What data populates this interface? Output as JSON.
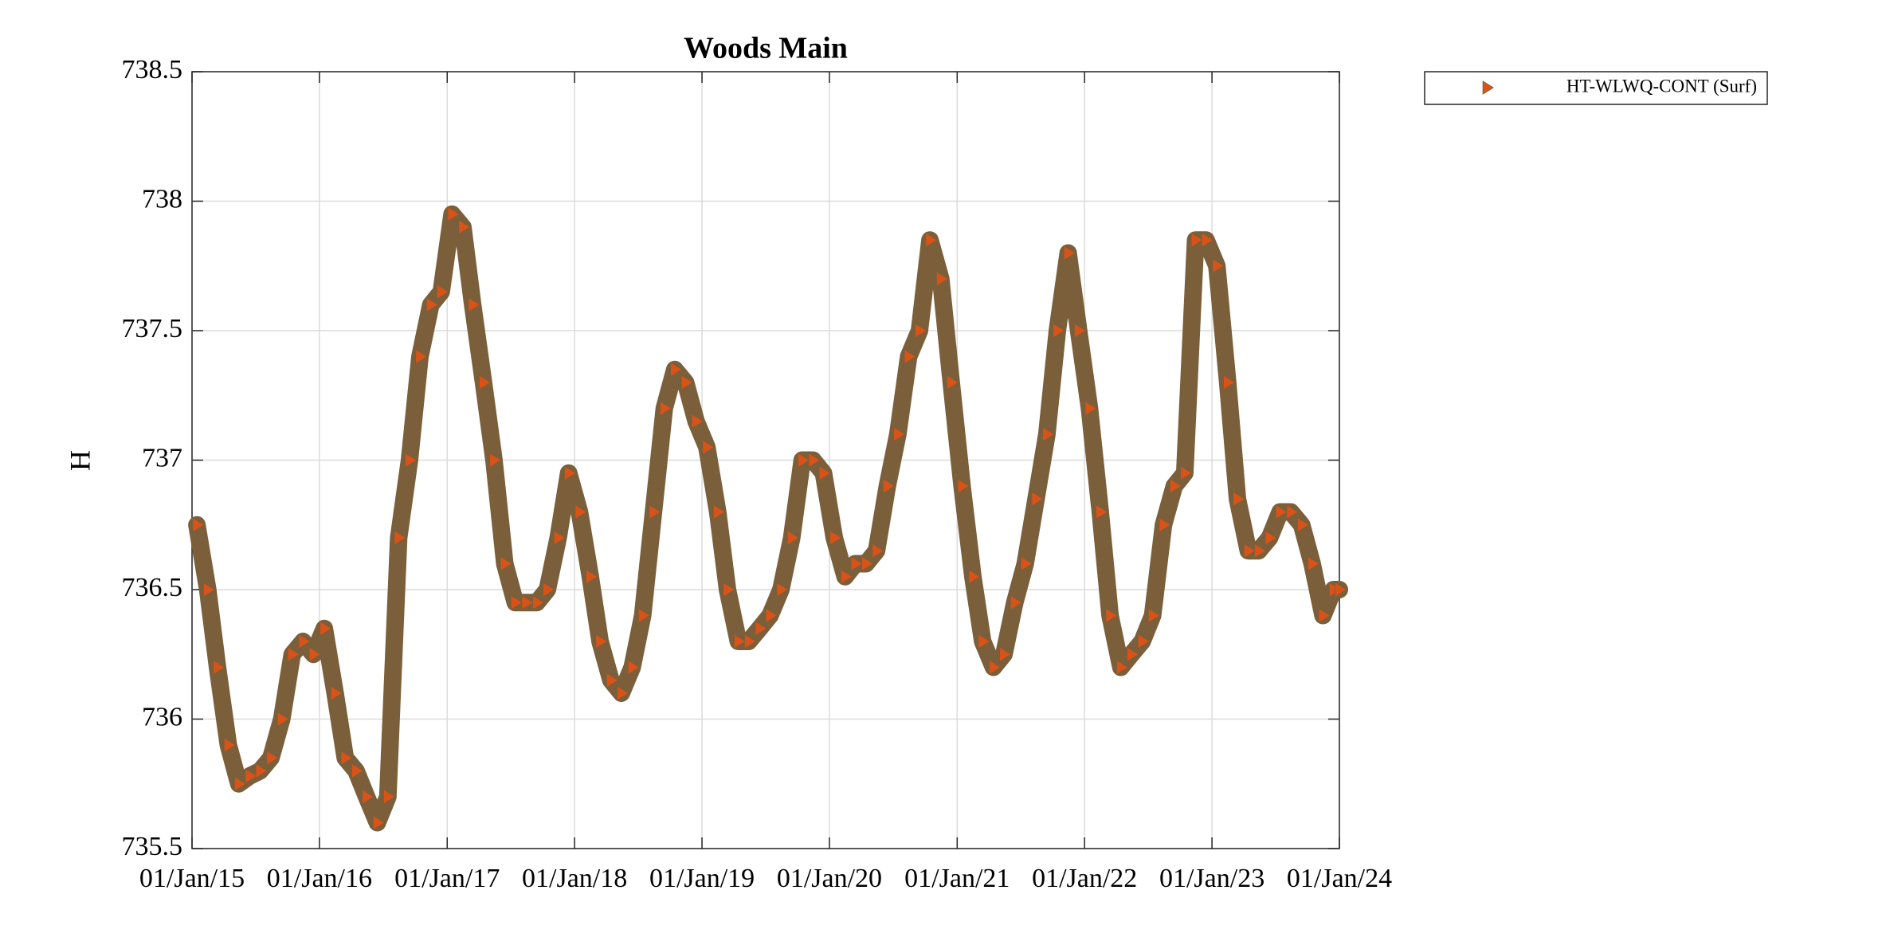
{
  "chart_data": {
    "type": "scatter",
    "title": "Woods Main",
    "y_label": "H",
    "x": [
      "2015-01-15",
      "2015-02-15",
      "2015-03-15",
      "2015-04-15",
      "2015-05-15",
      "2015-06-15",
      "2015-07-15",
      "2015-08-15",
      "2015-09-15",
      "2015-10-15",
      "2015-11-15",
      "2015-12-15",
      "2016-01-15",
      "2016-02-15",
      "2016-03-15",
      "2016-04-15",
      "2016-05-15",
      "2016-06-15",
      "2016-07-15",
      "2016-08-15",
      "2016-09-15",
      "2016-10-15",
      "2016-11-15",
      "2016-12-15",
      "2017-01-15",
      "2017-02-15",
      "2017-03-15",
      "2017-04-15",
      "2017-05-15",
      "2017-06-15",
      "2017-07-15",
      "2017-08-15",
      "2017-09-15",
      "2017-10-15",
      "2017-11-15",
      "2017-12-15",
      "2018-01-15",
      "2018-02-15",
      "2018-03-15",
      "2018-04-15",
      "2018-05-15",
      "2018-06-15",
      "2018-07-15",
      "2018-08-15",
      "2018-09-15",
      "2018-10-15",
      "2018-11-15",
      "2018-12-15",
      "2019-01-15",
      "2019-02-15",
      "2019-03-15",
      "2019-04-15",
      "2019-05-15",
      "2019-06-15",
      "2019-07-15",
      "2019-08-15",
      "2019-09-15",
      "2019-10-15",
      "2019-11-15",
      "2019-12-15",
      "2020-01-15",
      "2020-02-15",
      "2020-03-15",
      "2020-04-15",
      "2020-05-15",
      "2020-06-15",
      "2020-07-15",
      "2020-08-15",
      "2020-09-15",
      "2020-10-15",
      "2020-11-15",
      "2020-12-15",
      "2021-01-15",
      "2021-02-15",
      "2021-03-15",
      "2021-04-15",
      "2021-05-15",
      "2021-06-15",
      "2021-07-15",
      "2021-08-15",
      "2021-09-15",
      "2021-10-15",
      "2021-11-15",
      "2021-12-15",
      "2022-01-15",
      "2022-02-15",
      "2022-03-15",
      "2022-04-15",
      "2022-05-15",
      "2022-06-15",
      "2022-07-15",
      "2022-08-15",
      "2022-09-15",
      "2022-10-15",
      "2022-11-15",
      "2022-12-15",
      "2023-01-15",
      "2023-02-15",
      "2023-03-15",
      "2023-04-15",
      "2023-05-15",
      "2023-06-15",
      "2023-07-15",
      "2023-08-15",
      "2023-09-15",
      "2023-10-15",
      "2023-11-15",
      "2023-12-15",
      "2024-01-01"
    ],
    "series": [
      {
        "name": "HT-WLWQ-CONT (Surf)",
        "color": "#d95319",
        "edge_color": "#7a5f3a",
        "values": [
          736.75,
          736.5,
          736.2,
          735.9,
          735.75,
          735.78,
          735.8,
          735.85,
          736.0,
          736.25,
          736.3,
          736.25,
          736.35,
          736.1,
          735.85,
          735.8,
          735.7,
          735.6,
          735.7,
          736.7,
          737.0,
          737.4,
          737.6,
          737.65,
          737.95,
          737.9,
          737.6,
          737.3,
          737.0,
          736.6,
          736.45,
          736.45,
          736.45,
          736.5,
          736.7,
          736.95,
          736.8,
          736.55,
          736.3,
          736.15,
          736.1,
          736.2,
          736.4,
          736.8,
          737.2,
          737.35,
          737.3,
          737.15,
          737.05,
          736.8,
          736.5,
          736.3,
          736.3,
          736.35,
          736.4,
          736.5,
          736.7,
          737.0,
          737.0,
          736.95,
          736.7,
          736.55,
          736.6,
          736.6,
          736.65,
          736.9,
          737.1,
          737.4,
          737.5,
          737.85,
          737.7,
          737.3,
          736.9,
          736.55,
          736.3,
          736.2,
          736.25,
          736.45,
          736.6,
          736.85,
          737.1,
          737.5,
          737.8,
          737.5,
          737.2,
          736.8,
          736.4,
          736.2,
          736.25,
          736.3,
          736.4,
          736.75,
          736.9,
          736.95,
          737.85,
          737.85,
          737.75,
          737.3,
          736.85,
          736.65,
          736.65,
          736.7,
          736.8,
          736.8,
          736.75,
          736.6,
          736.4,
          736.5,
          736.5
        ]
      }
    ],
    "xlim": [
      "2015-01-01",
      "2024-01-01"
    ],
    "xticks": [
      {
        "value": "2015-01-01",
        "label": "01/Jan/15"
      },
      {
        "value": "2016-01-01",
        "label": "01/Jan/16"
      },
      {
        "value": "2017-01-01",
        "label": "01/Jan/17"
      },
      {
        "value": "2018-01-01",
        "label": "01/Jan/18"
      },
      {
        "value": "2019-01-01",
        "label": "01/Jan/19"
      },
      {
        "value": "2020-01-01",
        "label": "01/Jan/20"
      },
      {
        "value": "2021-01-01",
        "label": "01/Jan/21"
      },
      {
        "value": "2022-01-01",
        "label": "01/Jan/22"
      },
      {
        "value": "2023-01-01",
        "label": "01/Jan/23"
      },
      {
        "value": "2024-01-01",
        "label": "01/Jan/24"
      }
    ],
    "ylim": [
      735.5,
      738.5
    ],
    "yticks": [
      735.5,
      736,
      736.5,
      737,
      737.5,
      738,
      738.5
    ],
    "grid": true,
    "legend": "outside-top-right"
  }
}
